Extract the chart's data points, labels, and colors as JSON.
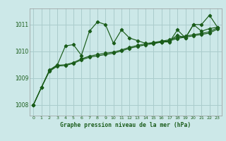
{
  "title": "Graphe pression niveau de la mer (hPa)",
  "bg_color": "#cce8e8",
  "grid_color": "#aacccc",
  "line_color": "#1a5c1a",
  "xlim": [
    -0.5,
    23.5
  ],
  "ylim": [
    1007.6,
    1011.6
  ],
  "yticks": [
    1008,
    1009,
    1010,
    1011
  ],
  "xticks": [
    0,
    1,
    2,
    3,
    4,
    5,
    6,
    7,
    8,
    9,
    10,
    11,
    12,
    13,
    14,
    15,
    16,
    17,
    18,
    19,
    20,
    21,
    22,
    23
  ],
  "series": [
    {
      "x": [
        0,
        1,
        2,
        3,
        4,
        5,
        6,
        7,
        8,
        9,
        10,
        11,
        12,
        13,
        14,
        15,
        16,
        17,
        18,
        19,
        20,
        21,
        22,
        23
      ],
      "y": [
        1008.0,
        1008.65,
        1009.3,
        1009.5,
        1010.2,
        1010.25,
        1009.85,
        1010.75,
        1011.1,
        1011.0,
        1010.3,
        1010.8,
        1010.5,
        1010.4,
        1010.3,
        1010.3,
        1010.35,
        1010.4,
        1010.6,
        1010.5,
        1011.0,
        1010.75,
        1010.85,
        1010.9
      ]
    },
    {
      "x": [
        0,
        1,
        2,
        3,
        4,
        5,
        6,
        7,
        8,
        9,
        10,
        11,
        12,
        13,
        14,
        15,
        16,
        17,
        18,
        19,
        20,
        21,
        22,
        23
      ],
      "y": [
        1008.0,
        1008.65,
        1009.28,
        1009.48,
        1009.5,
        1009.58,
        1009.72,
        1009.82,
        1009.88,
        1009.93,
        1009.97,
        1010.05,
        1010.15,
        1010.22,
        1010.28,
        1010.33,
        1010.38,
        1010.43,
        1010.52,
        1010.57,
        1010.62,
        1010.67,
        1010.73,
        1010.88
      ]
    },
    {
      "x": [
        0,
        1,
        2,
        3,
        4,
        5,
        6,
        7,
        8,
        9,
        10,
        11,
        12,
        13,
        14,
        15,
        16,
        17,
        18,
        19,
        20,
        21,
        22,
        23
      ],
      "y": [
        1008.0,
        1008.65,
        1009.25,
        1009.45,
        1009.47,
        1009.55,
        1009.68,
        1009.78,
        1009.83,
        1009.88,
        1009.93,
        1010.01,
        1010.11,
        1010.18,
        1010.24,
        1010.29,
        1010.34,
        1010.39,
        1010.48,
        1010.53,
        1010.58,
        1010.63,
        1010.68,
        1010.83
      ]
    },
    {
      "x": [
        15,
        16,
        17,
        18,
        19,
        20,
        21,
        22,
        23
      ],
      "y": [
        1010.3,
        1010.35,
        1010.35,
        1010.8,
        1010.5,
        1011.0,
        1011.0,
        1011.35,
        1010.9
      ]
    }
  ]
}
